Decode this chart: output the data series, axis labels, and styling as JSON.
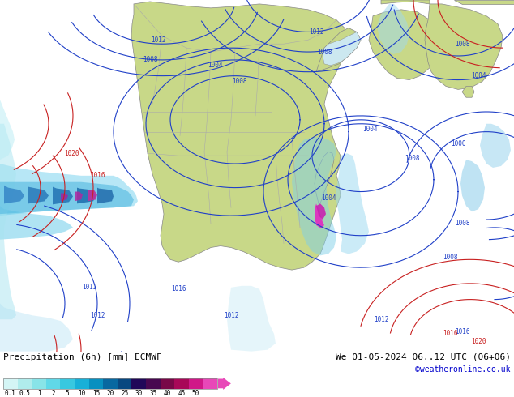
{
  "title_left": "Precipitation (6h) [mm] ECMWF",
  "title_right": "We 01-05-2024 06..12 UTC (06+06)",
  "credit": "©weatheronline.co.uk",
  "colorbar_tick_labels": [
    "0.1",
    "0.5",
    "1",
    "2",
    "5",
    "10",
    "15",
    "20",
    "25",
    "30",
    "35",
    "40",
    "45",
    "50"
  ],
  "cb_colors": [
    "#d4f5f5",
    "#b0ecec",
    "#88e4e8",
    "#60d8e8",
    "#38c8e0",
    "#18b0d8",
    "#0890c0",
    "#0868a0",
    "#084880",
    "#200858",
    "#480850",
    "#780848",
    "#a80858",
    "#d01888",
    "#e848b8"
  ],
  "bg_color": "#ffffff",
  "font_color": "#000000",
  "credit_color": "#0000cc",
  "ocean_color": "#cce8f0",
  "land_color": "#c8d888",
  "contour_blue": "#2040c8",
  "contour_red": "#c82020",
  "land_border": "#888888",
  "figsize": [
    6.34,
    4.9
  ],
  "dpi": 100
}
